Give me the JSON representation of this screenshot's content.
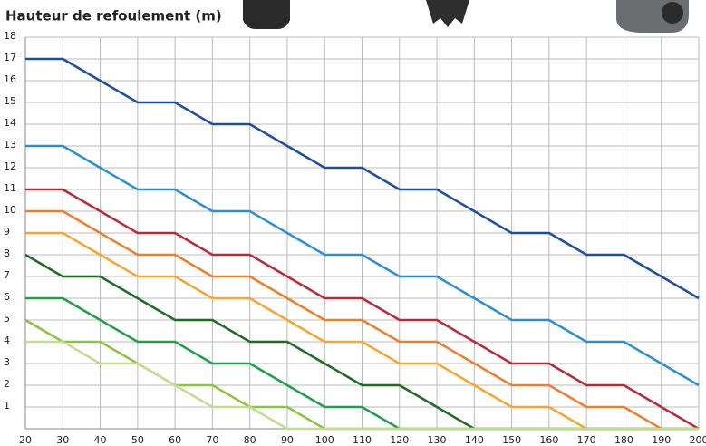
{
  "chart_data": {
    "type": "line",
    "title": "Hauteur de refoulement (m)",
    "x": [
      20,
      30,
      40,
      50,
      60,
      70,
      80,
      90,
      100,
      110,
      120,
      130,
      140,
      150,
      160,
      170,
      180,
      190,
      200
    ],
    "xlim": [
      20,
      200
    ],
    "xticks": [
      20,
      30,
      40,
      50,
      60,
      70,
      80,
      90,
      100,
      110,
      120,
      130,
      140,
      150,
      160,
      170,
      180,
      190,
      200
    ],
    "ylim": [
      0,
      18
    ],
    "yticks": [
      1,
      2,
      3,
      4,
      5,
      6,
      7,
      8,
      9,
      10,
      11,
      12,
      13,
      14,
      15,
      16,
      17,
      18
    ],
    "grid": true,
    "series": [
      {
        "color": "#1d4f9c",
        "values": [
          17,
          17,
          16,
          15,
          15,
          14,
          14,
          13,
          12,
          12,
          11,
          11,
          10,
          9,
          9,
          8,
          8,
          7,
          6
        ]
      },
      {
        "color": "#2b8fd0",
        "values": [
          13,
          13,
          12,
          11,
          11,
          10,
          10,
          9,
          8,
          8,
          7,
          7,
          6,
          5,
          5,
          4,
          4,
          3,
          2
        ]
      },
      {
        "color": "#b82a3a",
        "values": [
          11,
          11,
          10,
          9,
          9,
          8,
          8,
          7,
          6,
          6,
          5,
          5,
          4,
          3,
          3,
          2,
          2,
          1,
          0
        ]
      },
      {
        "color": "#ef7d2a",
        "values": [
          10,
          10,
          9,
          8,
          8,
          7,
          7,
          6,
          5,
          5,
          4,
          4,
          3,
          2,
          2,
          1,
          1,
          0,
          0
        ]
      },
      {
        "color": "#f7a531",
        "values": [
          9,
          9,
          8,
          7,
          7,
          6,
          6,
          5,
          4,
          4,
          3,
          3,
          2,
          1,
          1,
          0,
          0,
          0,
          0
        ]
      },
      {
        "color": "#f2ea1c",
        "values": [
          8,
          7,
          7,
          6,
          5,
          5,
          4,
          4,
          3,
          2,
          2,
          1,
          0,
          0,
          0,
          0,
          0,
          0,
          0
        ]
      },
      {
        "color": "#1e6b2e",
        "values": [
          8,
          7,
          7,
          6,
          5,
          5,
          4,
          4,
          3,
          2,
          2,
          1,
          0,
          0,
          0,
          0,
          0,
          0,
          0
        ]
      },
      {
        "color": "#1ea04a",
        "values": [
          6,
          6,
          5,
          4,
          4,
          3,
          3,
          2,
          1,
          1,
          0,
          0,
          0,
          0,
          0,
          0,
          0,
          0,
          0
        ]
      },
      {
        "color": "#8cc43f",
        "values": [
          5,
          4,
          4,
          3,
          2,
          2,
          1,
          1,
          0,
          0,
          0,
          0,
          0,
          0,
          0,
          0,
          0,
          0,
          0
        ]
      },
      {
        "color": "#c2dd8e",
        "values": [
          4,
          4,
          3,
          3,
          2,
          1,
          1,
          0,
          0,
          0,
          0,
          0,
          0,
          0,
          0,
          0,
          0,
          0,
          0
        ]
      }
    ]
  }
}
